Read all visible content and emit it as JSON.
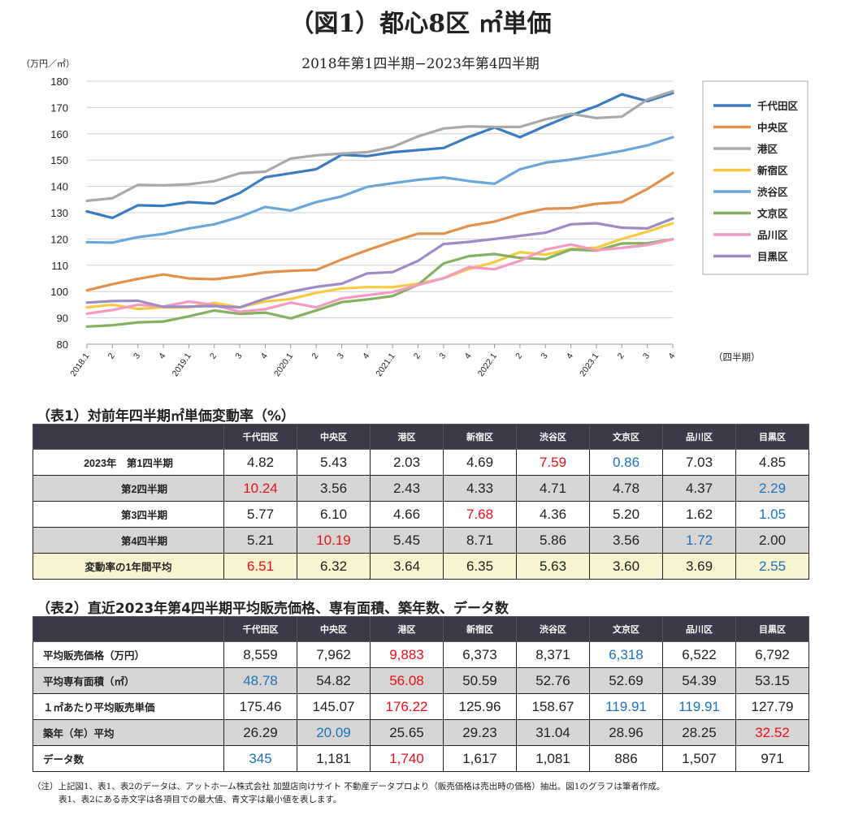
{
  "title": "（図1）都心8区 ㎡単価",
  "subtitle": "2018年第1四半期−2023年第4四半期",
  "chart_data": {
    "type": "line",
    "ylabel": "（万円／㎡）",
    "xlabel": "（四半期）",
    "ylim": [
      80,
      180
    ],
    "yticks": [
      "80",
      "90",
      "100",
      "110",
      "120",
      "130",
      "140",
      "150",
      "160",
      "170",
      "180"
    ],
    "categories": [
      "2018.1",
      "2",
      "3",
      "4",
      "2019.1",
      "2",
      "3",
      "4",
      "2020.1",
      "2",
      "3",
      "4",
      "2021.1",
      "2",
      "3",
      "4",
      "2022.1",
      "2",
      "3",
      "4",
      "2023.1",
      "2",
      "3",
      "4"
    ],
    "grid": true,
    "legend_position": "right",
    "series": [
      {
        "name": "千代田区",
        "color": "#3d7bc0",
        "values": [
          130.5,
          128,
          132.8,
          132.6,
          134,
          133.5,
          137.5,
          143.5,
          145,
          146.5,
          152,
          151.5,
          153,
          153.8,
          154.6,
          158.8,
          162.4,
          158.7,
          163,
          167,
          170.5,
          175,
          172.4,
          175.5
        ]
      },
      {
        "name": "中央区",
        "color": "#e0914c",
        "values": [
          100.5,
          102.8,
          104.8,
          106.5,
          105,
          104.7,
          105.8,
          107.3,
          107.9,
          108.2,
          112.2,
          115.7,
          119,
          122,
          122,
          125,
          126.6,
          129.5,
          131.5,
          131.7,
          133.4,
          134,
          139,
          145.1
        ]
      },
      {
        "name": "港区",
        "color": "#a9a9a9",
        "values": [
          134.5,
          135.5,
          140.6,
          140.4,
          140.8,
          142,
          145,
          145.6,
          150.6,
          151.8,
          152.5,
          153,
          155,
          159,
          162,
          162.8,
          162.6,
          162.6,
          165.5,
          167.6,
          166,
          166.5,
          173,
          176.2
        ]
      },
      {
        "name": "新宿区",
        "color": "#f5cc41",
        "values": [
          94,
          95,
          93.4,
          94,
          94,
          95.7,
          94,
          96.2,
          97.2,
          99.5,
          101.2,
          101.7,
          101.7,
          103,
          105,
          108.6,
          111.2,
          115,
          114,
          116.2,
          116.7,
          120,
          122.8,
          126
        ]
      },
      {
        "name": "渋谷区",
        "color": "#6aa7d8",
        "values": [
          118.8,
          118.6,
          120.7,
          121.9,
          124,
          125.6,
          128.4,
          132.2,
          130.8,
          134,
          136.2,
          139.8,
          141.2,
          142.5,
          143.4,
          142,
          141,
          146.5,
          149,
          150.2,
          151.8,
          153.5,
          155.6,
          158.7
        ]
      },
      {
        "name": "文京区",
        "color": "#85b061",
        "values": [
          86.7,
          87.2,
          88.3,
          88.6,
          90.6,
          92.8,
          91.5,
          92,
          89.8,
          92.8,
          96,
          97,
          98.3,
          102.6,
          110.7,
          113.5,
          114.3,
          112.8,
          112.3,
          116,
          115.6,
          118.3,
          118.4,
          119.9
        ]
      },
      {
        "name": "品川区",
        "color": "#f29ac0",
        "values": [
          91.6,
          93,
          95,
          94.3,
          96.2,
          94.9,
          92.3,
          93.3,
          95.8,
          94,
          97.4,
          98.6,
          99.8,
          102.5,
          105.1,
          109.3,
          108.5,
          111.7,
          116,
          117.9,
          115.7,
          116.6,
          117.7,
          119.9
        ]
      },
      {
        "name": "目黒区",
        "color": "#9e8bc4",
        "values": [
          95.8,
          96.4,
          96.5,
          94.2,
          94.3,
          94.5,
          94,
          97.3,
          99.9,
          101.8,
          103,
          106.9,
          107.4,
          111.7,
          118.1,
          118.9,
          120,
          121.2,
          122.4,
          125.6,
          126,
          124.3,
          124,
          127.8
        ]
      }
    ]
  },
  "table1": {
    "label": "（表1）対前年四半期㎡単価変動率（%）",
    "headers": [
      "",
      "千代田区",
      "中央区",
      "港区",
      "新宿区",
      "渋谷区",
      "文京区",
      "品川区",
      "目黒区"
    ],
    "rows": [
      {
        "label": "2023年　第1四半期",
        "values": [
          "4.82",
          "5.43",
          "2.03",
          "4.69",
          "7.59",
          "0.86",
          "7.03",
          "4.85"
        ]
      },
      {
        "label": "第2四半期",
        "values": [
          "10.24",
          "3.56",
          "2.43",
          "4.33",
          "4.71",
          "4.78",
          "4.37",
          "2.29"
        ]
      },
      {
        "label": "第3四半期",
        "values": [
          "5.77",
          "6.10",
          "4.66",
          "7.68",
          "4.36",
          "5.20",
          "1.62",
          "1.05"
        ]
      },
      {
        "label": "第4四半期",
        "values": [
          "5.21",
          "10.19",
          "5.45",
          "8.71",
          "5.86",
          "3.56",
          "1.72",
          "2.00"
        ]
      },
      {
        "label": "変動率の1年間平均",
        "values": [
          "6.51",
          "6.32",
          "3.64",
          "6.35",
          "5.63",
          "3.60",
          "3.69",
          "2.55"
        ]
      }
    ]
  },
  "table2": {
    "label": "（表2）直近2023年第4四半期平均販売価格、専有面積、築年数、データ数",
    "headers": [
      "",
      "千代田区",
      "中央区",
      "港区",
      "新宿区",
      "渋谷区",
      "文京区",
      "品川区",
      "目黒区"
    ],
    "rows": [
      {
        "label": "平均販売価格（万円）",
        "values": [
          "8,559",
          "7,962",
          "9,883",
          "6,373",
          "8,371",
          "6,318",
          "6,522",
          "6,792"
        ]
      },
      {
        "label": "平均専有面積（㎡）",
        "values": [
          "48.78",
          "54.82",
          "56.08",
          "50.59",
          "52.76",
          "52.69",
          "54.39",
          "53.15"
        ]
      },
      {
        "label": "１㎡あたり平均販売単価",
        "values": [
          "175.46",
          "145.07",
          "176.22",
          "125.96",
          "158.67",
          "119.91",
          "119.91",
          "127.79"
        ]
      },
      {
        "label": "築年（年）平均",
        "values": [
          "26.29",
          "20.09",
          "25.65",
          "29.23",
          "31.04",
          "28.96",
          "28.25",
          "32.52"
        ]
      },
      {
        "label": "データ数",
        "values": [
          "345",
          "1,181",
          "1,740",
          "1,617",
          "1,081",
          "886",
          "1,507",
          "971"
        ]
      }
    ]
  },
  "notes": [
    "（注）上記図1、表1、表2のデータは、アットホーム株式会社 加盟店向けサイト 不動産データプロより（販売価格は売出時の価格）抽出。図1のグラフは筆者作成。",
    "表1、表2にある赤文字は各項目での最大値、青文字は最小値を表します。"
  ]
}
